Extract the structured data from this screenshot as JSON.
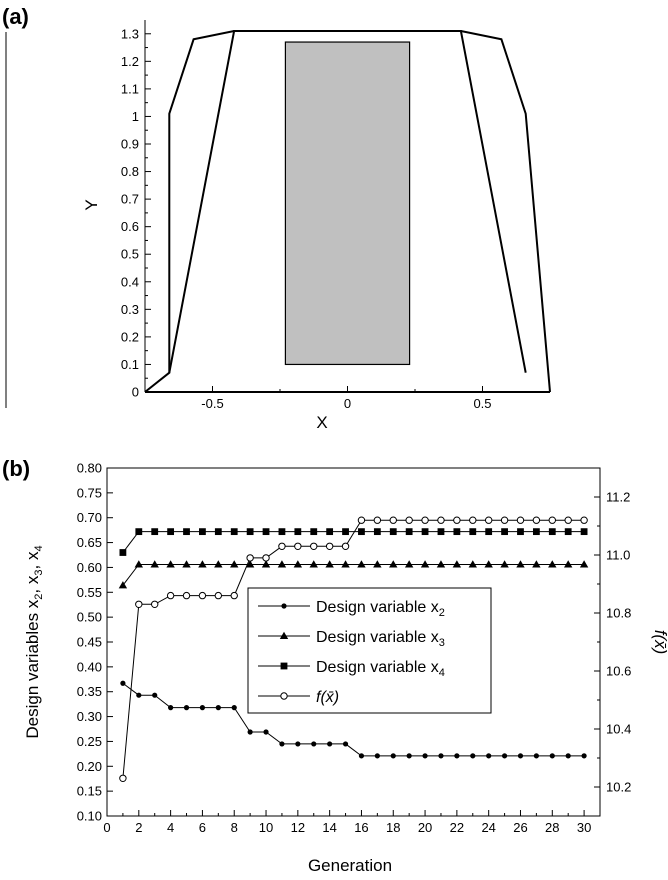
{
  "chart_data": [
    {
      "panel_label": "(a)",
      "type": "diagram",
      "xlabel": "X",
      "ylabel": "Y",
      "xlim": [
        -0.75,
        0.75
      ],
      "ylim": [
        0,
        1.35
      ],
      "xticks": [
        -0.5,
        0,
        0.5
      ],
      "xtick_labels": [
        "-0.5",
        "0",
        "0.5"
      ],
      "yticks": [
        0,
        0.1,
        0.2,
        0.3,
        0.4,
        0.5,
        0.6,
        0.7,
        0.8,
        0.9,
        1,
        1.1,
        1.2,
        1.3
      ],
      "ytick_labels": [
        "0",
        "0.1",
        "0.2",
        "0.3",
        "0.4",
        "0.5",
        "0.6",
        "0.7",
        "0.8",
        "0.9",
        "1",
        "1.1",
        "1.2",
        "1.3"
      ],
      "outer_boundary": [
        [
          -0.75,
          0
        ],
        [
          -0.66,
          0.07
        ],
        [
          -0.66,
          1.01
        ],
        [
          -0.57,
          1.28
        ],
        [
          -0.42,
          1.31
        ],
        [
          0.42,
          1.31
        ],
        [
          0.57,
          1.28
        ],
        [
          0.66,
          1.01
        ],
        [
          0.75,
          0
        ]
      ],
      "inner_boundary": [
        [
          -0.66,
          0.07
        ],
        [
          -0.42,
          1.31
        ],
        [
          0.42,
          1.31
        ],
        [
          0.66,
          0.07
        ]
      ],
      "bottom_line": [
        [
          -0.75,
          0
        ],
        [
          0.75,
          0
        ]
      ],
      "grey_rectangle": {
        "x": [
          -0.23,
          0.23
        ],
        "y": [
          0.1,
          1.27
        ],
        "color": "#c0c0c0"
      }
    },
    {
      "panel_label": "(b)",
      "type": "line",
      "xlabel": "Generation",
      "ylabel_left_parts": [
        "Design variables x",
        "2",
        ", x",
        "3",
        ", x",
        "4"
      ],
      "ylabel_right": "f(x̄)",
      "xlim": [
        0,
        31
      ],
      "ylim_left": [
        0.1,
        0.8
      ],
      "ylim_right": [
        10.1,
        11.3
      ],
      "xticks": [
        0,
        2,
        4,
        6,
        8,
        10,
        12,
        14,
        16,
        18,
        20,
        22,
        24,
        26,
        28,
        30
      ],
      "xtick_labels": [
        "0",
        "2",
        "4",
        "6",
        "8",
        "10",
        "12",
        "14",
        "16",
        "18",
        "20",
        "22",
        "24",
        "26",
        "28",
        "30"
      ],
      "yticks_left": [
        0.1,
        0.15,
        0.2,
        0.25,
        0.3,
        0.35,
        0.4,
        0.45,
        0.5,
        0.55,
        0.6,
        0.65,
        0.7,
        0.75,
        0.8
      ],
      "ytick_labels_left": [
        "0.10",
        "0.15",
        "0.20",
        "0.25",
        "0.30",
        "0.35",
        "0.40",
        "0.45",
        "0.50",
        "0.55",
        "0.60",
        "0.65",
        "0.70",
        "0.75",
        "0.80"
      ],
      "yticks_right": [
        10.2,
        10.4,
        10.6,
        10.8,
        11.0,
        11.2
      ],
      "ytick_labels_right": [
        "10.2",
        "10.4",
        "10.6",
        "10.8",
        "11.0",
        "11.2"
      ],
      "x": [
        1,
        2,
        3,
        4,
        5,
        6,
        7,
        8,
        9,
        10,
        11,
        12,
        13,
        14,
        15,
        16,
        17,
        18,
        19,
        20,
        21,
        22,
        23,
        24,
        25,
        26,
        27,
        28,
        29,
        30
      ],
      "series": [
        {
          "name_base": "Design variable x",
          "name_sub": "2",
          "axis": "left",
          "marker": "dot",
          "values": [
            0.367,
            0.343,
            0.343,
            0.318,
            0.318,
            0.318,
            0.318,
            0.318,
            0.269,
            0.269,
            0.245,
            0.245,
            0.245,
            0.245,
            0.245,
            0.221,
            0.221,
            0.221,
            0.221,
            0.221,
            0.221,
            0.221,
            0.221,
            0.221,
            0.221,
            0.221,
            0.221,
            0.221,
            0.221,
            0.221
          ]
        },
        {
          "name_base": "Design variable x",
          "name_sub": "3",
          "axis": "left",
          "marker": "triangle",
          "values": [
            0.564,
            0.606,
            0.606,
            0.606,
            0.606,
            0.606,
            0.606,
            0.606,
            0.606,
            0.606,
            0.606,
            0.606,
            0.606,
            0.606,
            0.606,
            0.606,
            0.606,
            0.606,
            0.606,
            0.606,
            0.606,
            0.606,
            0.606,
            0.606,
            0.606,
            0.606,
            0.606,
            0.606,
            0.606,
            0.606
          ]
        },
        {
          "name_base": "Design variable x",
          "name_sub": "4",
          "axis": "left",
          "marker": "square",
          "values": [
            0.63,
            0.672,
            0.672,
            0.672,
            0.672,
            0.672,
            0.672,
            0.672,
            0.672,
            0.672,
            0.672,
            0.672,
            0.672,
            0.672,
            0.672,
            0.672,
            0.672,
            0.672,
            0.672,
            0.672,
            0.672,
            0.672,
            0.672,
            0.672,
            0.672,
            0.672,
            0.672,
            0.672,
            0.672,
            0.672
          ]
        },
        {
          "name_base": "f(x̄)",
          "name_sub": "",
          "axis": "right",
          "marker": "open-circle",
          "values": [
            10.23,
            10.83,
            10.83,
            10.86,
            10.86,
            10.86,
            10.86,
            10.86,
            10.99,
            10.99,
            11.03,
            11.03,
            11.03,
            11.03,
            11.03,
            11.12,
            11.12,
            11.12,
            11.12,
            11.12,
            11.12,
            11.12,
            11.12,
            11.12,
            11.12,
            11.12,
            11.12,
            11.12,
            11.12,
            11.12
          ]
        }
      ],
      "legend_position": "center-right"
    }
  ]
}
